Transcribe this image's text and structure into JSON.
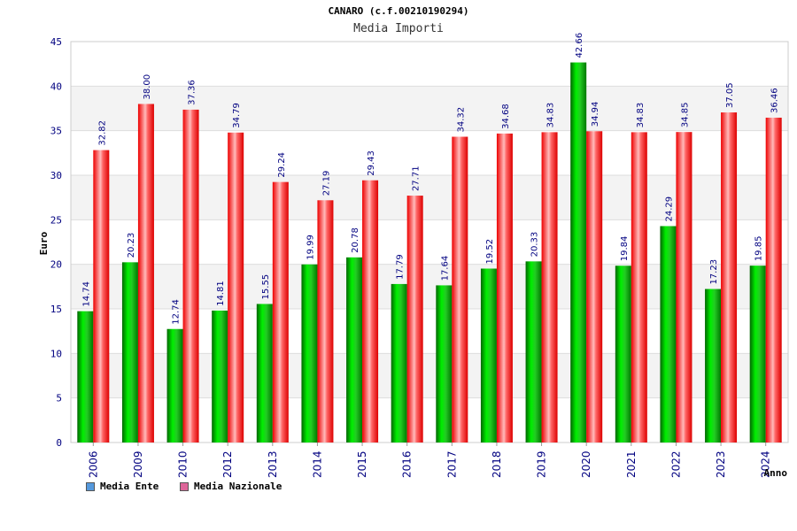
{
  "chart_data": {
    "type": "bar",
    "title": "CANARO (c.f.00210190294)",
    "subtitle": "Media Importi",
    "xlabel": "Anno",
    "ylabel": "Euro",
    "ylim": [
      0,
      45
    ],
    "yticks": [
      0,
      5,
      10,
      15,
      20,
      25,
      30,
      35,
      40,
      45
    ],
    "categories": [
      "2006",
      "2009",
      "2010",
      "2012",
      "2013",
      "2014",
      "2015",
      "2016",
      "2017",
      "2018",
      "2019",
      "2020",
      "2021",
      "2022",
      "2023",
      "2024"
    ],
    "series": [
      {
        "name": "Media Ente",
        "color": "#00bb00",
        "values": [
          14.74,
          20.23,
          12.74,
          14.81,
          15.55,
          19.99,
          20.78,
          17.79,
          17.64,
          19.52,
          20.33,
          42.66,
          19.84,
          24.29,
          17.23,
          19.85
        ],
        "labels": [
          "14.74",
          "20.23",
          "12.74",
          "14.81",
          "15.55",
          "19.99",
          "20.78",
          "17.79",
          "17.64",
          "19.52",
          "20.33",
          "42.66",
          "19.84",
          "24.29",
          "17.23",
          "19.85"
        ]
      },
      {
        "name": "Media Nazionale",
        "color": "#ee1111",
        "values": [
          32.82,
          38.0,
          37.36,
          34.79,
          29.24,
          27.19,
          29.43,
          27.71,
          34.32,
          34.68,
          34.83,
          34.94,
          34.83,
          34.85,
          37.05,
          36.46
        ],
        "labels": [
          "32.82",
          "38.00",
          "37.36",
          "34.79",
          "29.24",
          "27.19",
          "29.43",
          "27.71",
          "34.32",
          "34.68",
          "34.83",
          "34.94",
          "34.83",
          "34.85",
          "37.05",
          "36.46"
        ]
      }
    ],
    "legend": [
      {
        "label": "Media Ente",
        "color": "#5599dd"
      },
      {
        "label": "Media Nazionale",
        "color": "#dd6699"
      }
    ]
  }
}
